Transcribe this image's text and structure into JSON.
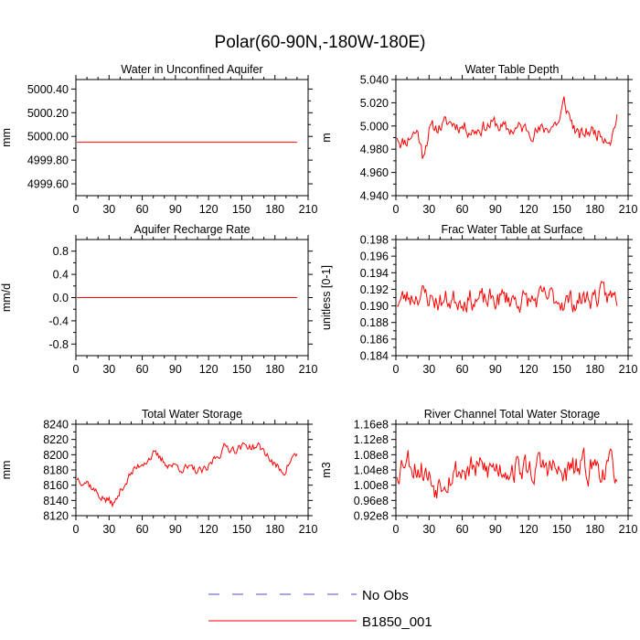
{
  "page_title": "Polar(60-90N,-180W-180E)",
  "colors": {
    "model": "#ff0000",
    "obs": "#4b4bd6",
    "axis": "#000000"
  },
  "legend": [
    {
      "label": "No Obs",
      "style": "dashed",
      "color": "#4b4bd6"
    },
    {
      "label": "B1850_001",
      "style": "solid",
      "color": "#ff0000"
    }
  ],
  "chart_data": [
    {
      "type": "line",
      "title": "Water in Unconfined Aquifer",
      "ylabel": "mm",
      "xlim": [
        0,
        210
      ],
      "ylim": [
        4999.5,
        5000.48
      ],
      "xticks": [
        0,
        30,
        60,
        90,
        120,
        150,
        180,
        210
      ],
      "yticks": [
        4999.6,
        4999.8,
        5000.0,
        5000.2,
        5000.4
      ],
      "ytick_labels": [
        "4999.60",
        "4999.80",
        "5000.00",
        "5000.20",
        "5000.40"
      ],
      "series": [
        {
          "name": "B1850_001",
          "kind": "constant",
          "x_start": 1,
          "x_end": 200,
          "value": 4999.95
        }
      ]
    },
    {
      "type": "line",
      "title": "Water Table Depth",
      "ylabel": "m",
      "xlim": [
        0,
        210
      ],
      "ylim": [
        4.94,
        5.04
      ],
      "xticks": [
        0,
        30,
        60,
        90,
        120,
        150,
        180,
        210
      ],
      "yticks": [
        4.94,
        4.96,
        4.98,
        5.0,
        5.02,
        5.04
      ],
      "ytick_labels": [
        "4.940",
        "4.960",
        "4.980",
        "5.000",
        "5.020",
        "5.040"
      ],
      "series": [
        {
          "name": "B1850_001",
          "kind": "noisy",
          "x_start": 1,
          "x_end": 200,
          "n": 200,
          "seed": 11,
          "anchors": [
            [
              0,
              4.994
            ],
            [
              5,
              4.986
            ],
            [
              10,
              4.988
            ],
            [
              15,
              4.994
            ],
            [
              20,
              4.995
            ],
            [
              24,
              4.975
            ],
            [
              30,
              4.996
            ],
            [
              40,
              5.0
            ],
            [
              50,
              5.003
            ],
            [
              60,
              5.0
            ],
            [
              70,
              4.996
            ],
            [
              80,
              5.0
            ],
            [
              90,
              5.002
            ],
            [
              100,
              4.996
            ],
            [
              110,
              4.998
            ],
            [
              120,
              4.997
            ],
            [
              130,
              4.995
            ],
            [
              140,
              5.0
            ],
            [
              148,
              5.004
            ],
            [
              152,
              5.02
            ],
            [
              158,
              5.006
            ],
            [
              165,
              4.99
            ],
            [
              175,
              4.996
            ],
            [
              185,
              4.994
            ],
            [
              195,
              4.99
            ],
            [
              200,
              5.01
            ]
          ],
          "amp": 0.0075,
          "min": 4.96,
          "max": 5.028
        }
      ]
    },
    {
      "type": "line",
      "title": "Aquifer Recharge Rate",
      "ylabel": "mm/d",
      "xlim": [
        0,
        210
      ],
      "ylim": [
        -1.0,
        1.0
      ],
      "xticks": [
        0,
        30,
        60,
        90,
        120,
        150,
        180,
        210
      ],
      "yticks": [
        -0.8,
        -0.4,
        0.0,
        0.4,
        0.8
      ],
      "ytick_labels": [
        "-0.8",
        "-0.4",
        "0.0",
        "0.4",
        "0.8"
      ],
      "series": [
        {
          "name": "B1850_001",
          "kind": "constant",
          "x_start": 1,
          "x_end": 200,
          "value": 0.0
        }
      ]
    },
    {
      "type": "line",
      "title": "Frac Water Table at Surface",
      "ylabel": "unitless [0-1]",
      "xlim": [
        0,
        210
      ],
      "ylim": [
        0.184,
        0.198
      ],
      "xticks": [
        0,
        30,
        60,
        90,
        120,
        150,
        180,
        210
      ],
      "yticks": [
        0.184,
        0.186,
        0.188,
        0.19,
        0.192,
        0.194,
        0.196,
        0.198
      ],
      "ytick_labels": [
        "0.184",
        "0.186",
        "0.188",
        "0.190",
        "0.192",
        "0.194",
        "0.196",
        "0.198"
      ],
      "series": [
        {
          "name": "B1850_001",
          "kind": "noisy",
          "x_start": 1,
          "x_end": 200,
          "n": 200,
          "seed": 23,
          "anchors": [
            [
              0,
              0.1905
            ],
            [
              20,
              0.1915
            ],
            [
              40,
              0.1905
            ],
            [
              60,
              0.191
            ],
            [
              80,
              0.1905
            ],
            [
              100,
              0.191
            ],
            [
              120,
              0.1905
            ],
            [
              140,
              0.191
            ],
            [
              160,
              0.1905
            ],
            [
              180,
              0.1912
            ],
            [
              200,
              0.191
            ]
          ],
          "amp": 0.0016,
          "min": 0.186,
          "max": 0.1966
        }
      ]
    },
    {
      "type": "line",
      "title": "Total Water Storage",
      "ylabel": "mm",
      "xlim": [
        0,
        210
      ],
      "ylim": [
        8120,
        8240
      ],
      "xticks": [
        0,
        30,
        60,
        90,
        120,
        150,
        180,
        210
      ],
      "yticks": [
        8120,
        8140,
        8160,
        8180,
        8200,
        8220,
        8240
      ],
      "ytick_labels": [
        "8120",
        "8140",
        "8160",
        "8180",
        "8200",
        "8220",
        "8240"
      ],
      "series": [
        {
          "name": "B1850_001",
          "kind": "noisy",
          "x_start": 1,
          "x_end": 200,
          "n": 200,
          "seed": 37,
          "anchors": [
            [
              0,
              8170
            ],
            [
              10,
              8165
            ],
            [
              20,
              8148
            ],
            [
              28,
              8140
            ],
            [
              35,
              8135
            ],
            [
              42,
              8158
            ],
            [
              50,
              8175
            ],
            [
              60,
              8190
            ],
            [
              70,
              8200
            ],
            [
              80,
              8190
            ],
            [
              90,
              8185
            ],
            [
              100,
              8182
            ],
            [
              110,
              8178
            ],
            [
              118,
              8178
            ],
            [
              125,
              8195
            ],
            [
              135,
              8210
            ],
            [
              145,
              8208
            ],
            [
              155,
              8212
            ],
            [
              165,
              8210
            ],
            [
              172,
              8202
            ],
            [
              180,
              8185
            ],
            [
              188,
              8178
            ],
            [
              195,
              8195
            ],
            [
              200,
              8200
            ]
          ],
          "amp": 7,
          "min": 8128,
          "max": 8225
        }
      ]
    },
    {
      "type": "line",
      "title": "River Channel Total Water Storage",
      "ylabel": "m3",
      "xlim": [
        0,
        210
      ],
      "ylim": [
        92000000.0,
        116000000.0
      ],
      "xticks": [
        0,
        30,
        60,
        90,
        120,
        150,
        180,
        210
      ],
      "yticks": [
        92000000.0,
        96000000.0,
        100000000.0,
        104000000.0,
        108000000.0,
        112000000.0,
        116000000.0
      ],
      "ytick_labels": [
        "0.92e8",
        "0.96e8",
        "1.00e8",
        "1.04e8",
        "1.08e8",
        "1.12e8",
        "1.16e8"
      ],
      "series": [
        {
          "name": "B1850_001",
          "kind": "noisy",
          "x_start": 1,
          "x_end": 200,
          "n": 200,
          "seed": 53,
          "anchors": [
            [
              0,
              103000000.0
            ],
            [
              8,
              108000000.0
            ],
            [
              15,
              106000000.0
            ],
            [
              25,
              104000000.0
            ],
            [
              35,
              100000000.0
            ],
            [
              45,
              103000000.0
            ],
            [
              60,
              104000000.0
            ],
            [
              80,
              104000000.0
            ],
            [
              100,
              105000000.0
            ],
            [
              120,
              104000000.0
            ],
            [
              140,
              105000000.0
            ],
            [
              150,
              102000000.0
            ],
            [
              160,
              104000000.0
            ],
            [
              180,
              105000000.0
            ],
            [
              200,
              104000000.0
            ]
          ],
          "amp": 4500000.0,
          "min": 93000000.0,
          "max": 114000000.0
        }
      ]
    }
  ]
}
